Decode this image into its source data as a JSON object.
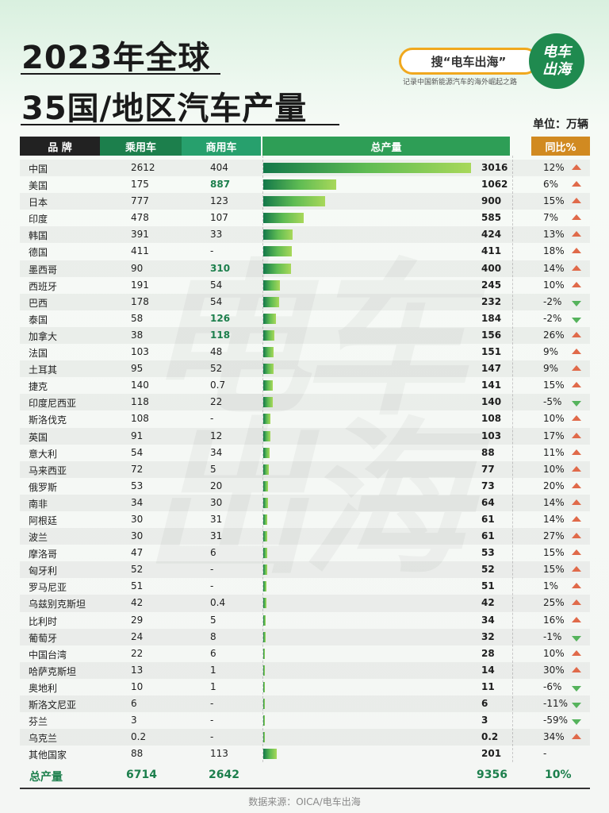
{
  "header": {
    "title_line1": "2023年全球",
    "title_line2": "35国/地区汽车产量",
    "search_label": "搜“电车出海”",
    "logo_line1": "电车",
    "logo_line2": "出海",
    "slogan": "记录中国新能源汽车的海外崛起之路",
    "unit": "单位：万辆"
  },
  "table": {
    "columns": [
      "品  牌",
      "乘用车",
      "商用车",
      "总产量",
      "同比%"
    ],
    "total_row": {
      "label": "总产量",
      "passenger": "6714",
      "commercial": "2642",
      "total": "9356",
      "yoy": "10%"
    }
  },
  "chart_data": {
    "type": "bar",
    "title": "2023年全球35国/地区汽车产量",
    "unit": "万辆",
    "series_name": "总产量",
    "rows": [
      {
        "name": "中国",
        "passenger": "2612",
        "commercial": "404",
        "total": 3016,
        "yoy": "12%",
        "trend": "up"
      },
      {
        "name": "美国",
        "passenger": "175",
        "commercial": "887",
        "total": 1062,
        "yoy": "6%",
        "trend": "up",
        "hl": true
      },
      {
        "name": "日本",
        "passenger": "777",
        "commercial": "123",
        "total": 900,
        "yoy": "15%",
        "trend": "up"
      },
      {
        "name": "印度",
        "passenger": "478",
        "commercial": "107",
        "total": 585,
        "yoy": "7%",
        "trend": "up"
      },
      {
        "name": "韩国",
        "passenger": "391",
        "commercial": "33",
        "total": 424,
        "yoy": "13%",
        "trend": "up"
      },
      {
        "name": "德国",
        "passenger": "411",
        "commercial": "-",
        "total": 411,
        "yoy": "18%",
        "trend": "up"
      },
      {
        "name": "墨西哥",
        "passenger": "90",
        "commercial": "310",
        "total": 400,
        "yoy": "14%",
        "trend": "up",
        "hl": true
      },
      {
        "name": "西班牙",
        "passenger": "191",
        "commercial": "54",
        "total": 245,
        "yoy": "10%",
        "trend": "up"
      },
      {
        "name": "巴西",
        "passenger": "178",
        "commercial": "54",
        "total": 232,
        "yoy": "-2%",
        "trend": "down"
      },
      {
        "name": "泰国",
        "passenger": "58",
        "commercial": "126",
        "total": 184,
        "yoy": "-2%",
        "trend": "down",
        "hl": true
      },
      {
        "name": "加拿大",
        "passenger": "38",
        "commercial": "118",
        "total": 156,
        "yoy": "26%",
        "trend": "up",
        "hl": true
      },
      {
        "name": "法国",
        "passenger": "103",
        "commercial": "48",
        "total": 151,
        "yoy": "9%",
        "trend": "up"
      },
      {
        "name": "土耳其",
        "passenger": "95",
        "commercial": "52",
        "total": 147,
        "yoy": "9%",
        "trend": "up"
      },
      {
        "name": "捷克",
        "passenger": "140",
        "commercial": "0.7",
        "total": 141,
        "yoy": "15%",
        "trend": "up"
      },
      {
        "name": "印度尼西亚",
        "passenger": "118",
        "commercial": "22",
        "total": 140,
        "yoy": "-5%",
        "trend": "down"
      },
      {
        "name": "斯洛伐克",
        "passenger": "108",
        "commercial": "-",
        "total": 108,
        "yoy": "10%",
        "trend": "up"
      },
      {
        "name": "英国",
        "passenger": "91",
        "commercial": "12",
        "total": 103,
        "yoy": "17%",
        "trend": "up"
      },
      {
        "name": "意大利",
        "passenger": "54",
        "commercial": "34",
        "total": 88,
        "yoy": "11%",
        "trend": "up"
      },
      {
        "name": "马来西亚",
        "passenger": "72",
        "commercial": "5",
        "total": 77,
        "yoy": "10%",
        "trend": "up"
      },
      {
        "name": "俄罗斯",
        "passenger": "53",
        "commercial": "20",
        "total": 73,
        "yoy": "20%",
        "trend": "up"
      },
      {
        "name": "南非",
        "passenger": "34",
        "commercial": "30",
        "total": 64,
        "yoy": "14%",
        "trend": "up"
      },
      {
        "name": "阿根廷",
        "passenger": "30",
        "commercial": "31",
        "total": 61,
        "yoy": "14%",
        "trend": "up"
      },
      {
        "name": "波兰",
        "passenger": "30",
        "commercial": "31",
        "total": 61,
        "yoy": "27%",
        "trend": "up"
      },
      {
        "name": "摩洛哥",
        "passenger": "47",
        "commercial": "6",
        "total": 53,
        "yoy": "15%",
        "trend": "up"
      },
      {
        "name": "匈牙利",
        "passenger": "52",
        "commercial": "-",
        "total": 52,
        "yoy": "15%",
        "trend": "up"
      },
      {
        "name": "罗马尼亚",
        "passenger": "51",
        "commercial": "-",
        "total": 51,
        "yoy": "1%",
        "trend": "up"
      },
      {
        "name": "乌兹别克斯坦",
        "passenger": "42",
        "commercial": "0.4",
        "total": 42,
        "yoy": "25%",
        "trend": "up"
      },
      {
        "name": "比利时",
        "passenger": "29",
        "commercial": "5",
        "total": 34,
        "yoy": "16%",
        "trend": "up"
      },
      {
        "name": "葡萄牙",
        "passenger": "24",
        "commercial": "8",
        "total": 32,
        "yoy": "-1%",
        "trend": "down"
      },
      {
        "name": "中国台湾",
        "passenger": "22",
        "commercial": "6",
        "total": 28,
        "yoy": "10%",
        "trend": "up"
      },
      {
        "name": "哈萨克斯坦",
        "passenger": "13",
        "commercial": "1",
        "total": 14,
        "yoy": "30%",
        "trend": "up"
      },
      {
        "name": "奥地利",
        "passenger": "10",
        "commercial": "1",
        "total": 11,
        "yoy": "-6%",
        "trend": "down"
      },
      {
        "name": "斯洛文尼亚",
        "passenger": "6",
        "commercial": "-",
        "total": 6,
        "yoy": "-11%",
        "trend": "down"
      },
      {
        "name": "芬兰",
        "passenger": "3",
        "commercial": "-",
        "total": 3,
        "yoy": "-59%",
        "trend": "down"
      },
      {
        "name": "乌克兰",
        "passenger": "0.2",
        "commercial": "-",
        "total": 0.2,
        "yoy": "34%",
        "trend": "up"
      },
      {
        "name": "其他国家",
        "passenger": "88",
        "commercial": "113",
        "total": 201,
        "yoy": "-",
        "trend": "none"
      }
    ],
    "xlim": [
      0,
      3016
    ]
  },
  "footer": {
    "source": "数据来源：OICA/电车出海"
  }
}
